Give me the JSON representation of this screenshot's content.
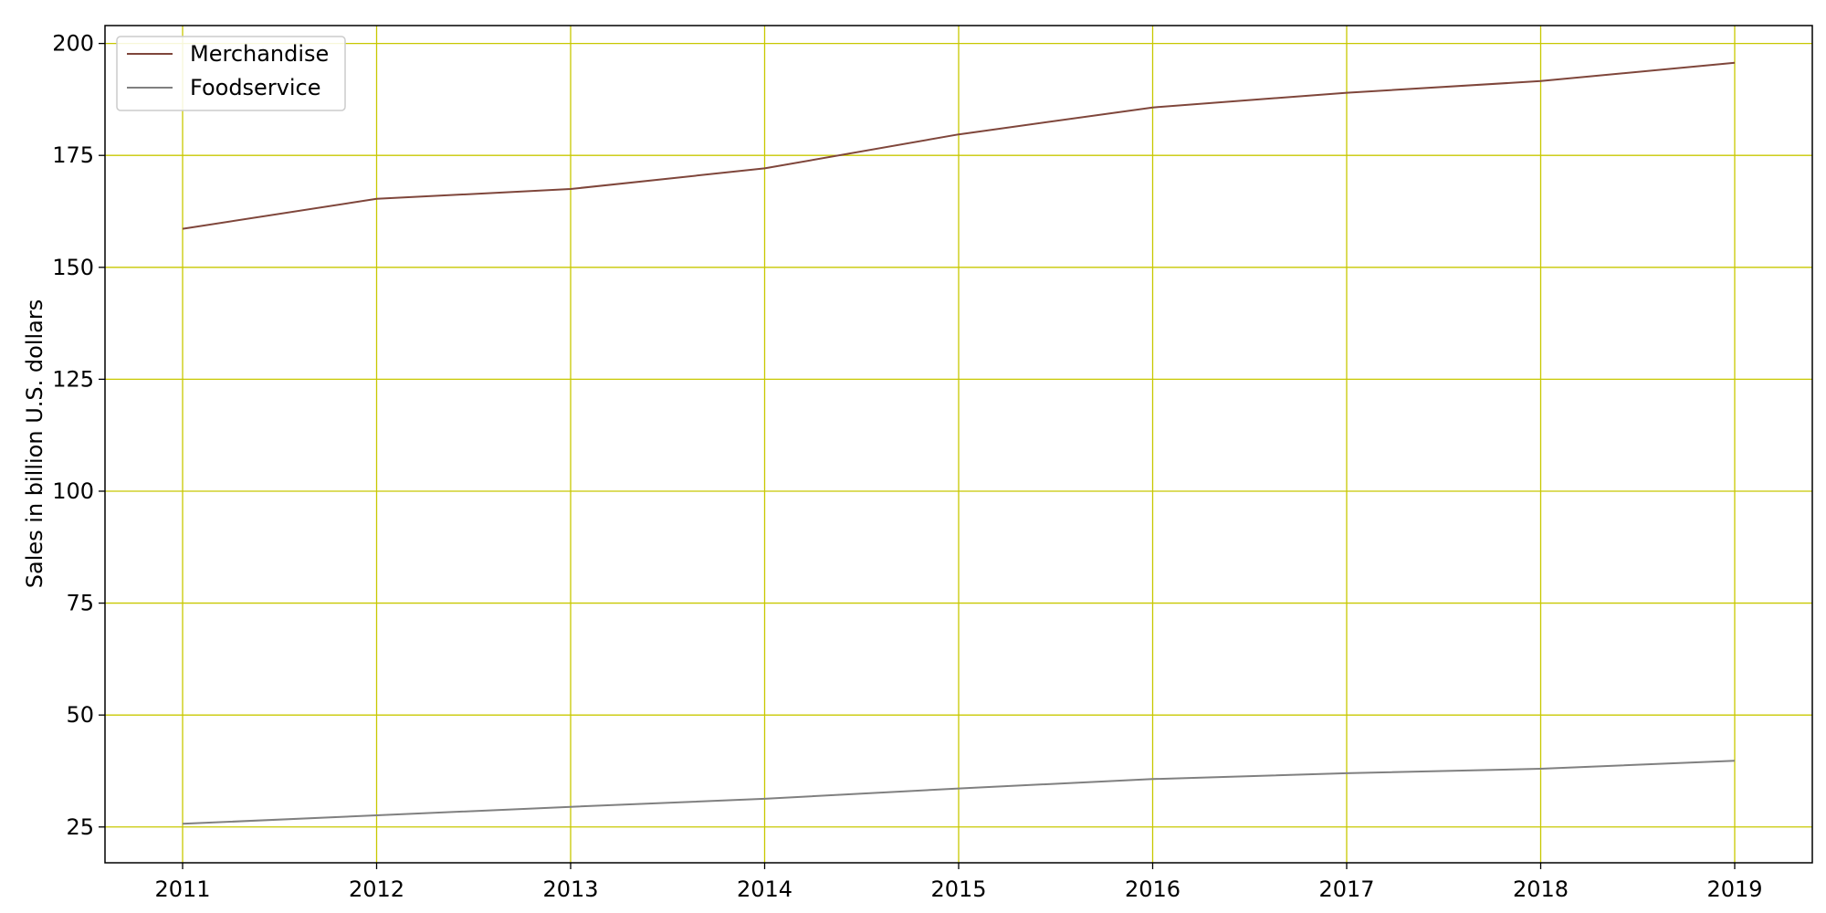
{
  "chart_data": {
    "type": "line",
    "title": "",
    "xlabel": "",
    "ylabel": "Sales in billion U.S. dollars",
    "x": [
      "2011",
      "2012",
      "2013",
      "2014",
      "2015",
      "2016",
      "2017",
      "2018",
      "2019"
    ],
    "ylim": [
      17,
      204
    ],
    "yticks": [
      25,
      50,
      75,
      100,
      125,
      150,
      175,
      200
    ],
    "grid": true,
    "grid_color": "#c8c800",
    "legend_position": "top-left",
    "series": [
      {
        "name": "Merchandise",
        "color": "#7f463b",
        "values": [
          158.6,
          165.3,
          167.5,
          172.1,
          179.7,
          185.7,
          189.0,
          191.6,
          195.7
        ]
      },
      {
        "name": "Foodservice",
        "color": "#808080",
        "values": [
          25.7,
          27.6,
          29.5,
          31.3,
          33.6,
          35.7,
          37.0,
          38.0,
          39.8
        ]
      }
    ]
  }
}
